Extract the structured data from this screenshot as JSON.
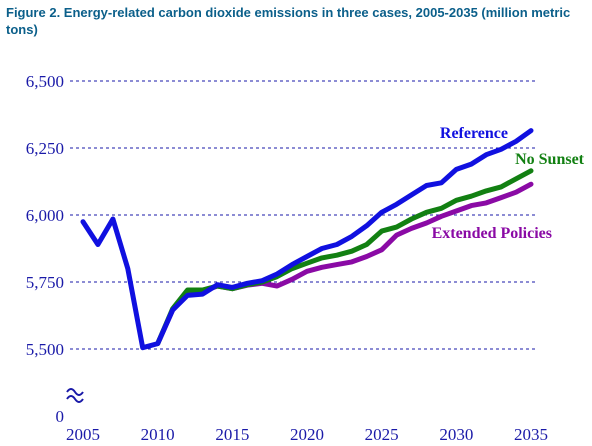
{
  "figure": {
    "title": "Figure 2. Energy-related carbon dioxide emissions in three cases, 2005-2035 (million metric tons)"
  },
  "chart_data": {
    "type": "line",
    "title": "Figure 2. Energy-related carbon dioxide emissions in three cases, 2005-2035 (million metric tons)",
    "xlabel": "",
    "ylabel": "",
    "x": [
      2005,
      2006,
      2007,
      2008,
      2009,
      2010,
      2011,
      2012,
      2013,
      2014,
      2015,
      2016,
      2017,
      2018,
      2019,
      2020,
      2021,
      2022,
      2023,
      2024,
      2025,
      2026,
      2027,
      2028,
      2029,
      2030,
      2031,
      2032,
      2033,
      2034,
      2035
    ],
    "xlim": [
      2005,
      2035
    ],
    "ylim": [
      5500,
      6500
    ],
    "axis_break": true,
    "y_ticks": [
      "0",
      "5,500",
      "5,750",
      "6,000",
      "6,250",
      "6,500"
    ],
    "x_ticks": [
      "2005",
      "2010",
      "2015",
      "2020",
      "2025",
      "2030",
      "2035"
    ],
    "grid": "horizontal dashed",
    "series": [
      {
        "name": "Reference",
        "color": "#1010e0",
        "values": [
          5975,
          5890,
          5985,
          5800,
          5505,
          5520,
          5645,
          5700,
          5705,
          5740,
          5730,
          5745,
          5755,
          5780,
          5815,
          5845,
          5875,
          5890,
          5920,
          5960,
          6010,
          6040,
          6075,
          6110,
          6120,
          6170,
          6190,
          6225,
          6245,
          6275,
          6315
        ]
      },
      {
        "name": "No Sunset",
        "color": "#128012",
        "values": [
          null,
          null,
          null,
          null,
          null,
          5520,
          5650,
          5720,
          5720,
          5735,
          5725,
          5740,
          5750,
          5770,
          5800,
          5820,
          5840,
          5850,
          5865,
          5890,
          5940,
          5955,
          5985,
          6010,
          6025,
          6055,
          6070,
          6090,
          6105,
          6135,
          6165
        ]
      },
      {
        "name": "Extended Policies",
        "color": "#8a0aa5",
        "values": [
          null,
          null,
          null,
          null,
          null,
          5520,
          5645,
          5715,
          5715,
          5735,
          5725,
          5738,
          5745,
          5735,
          5760,
          5790,
          5805,
          5815,
          5825,
          5845,
          5870,
          5925,
          5950,
          5970,
          5995,
          6015,
          6035,
          6045,
          6065,
          6085,
          6115
        ]
      }
    ]
  }
}
